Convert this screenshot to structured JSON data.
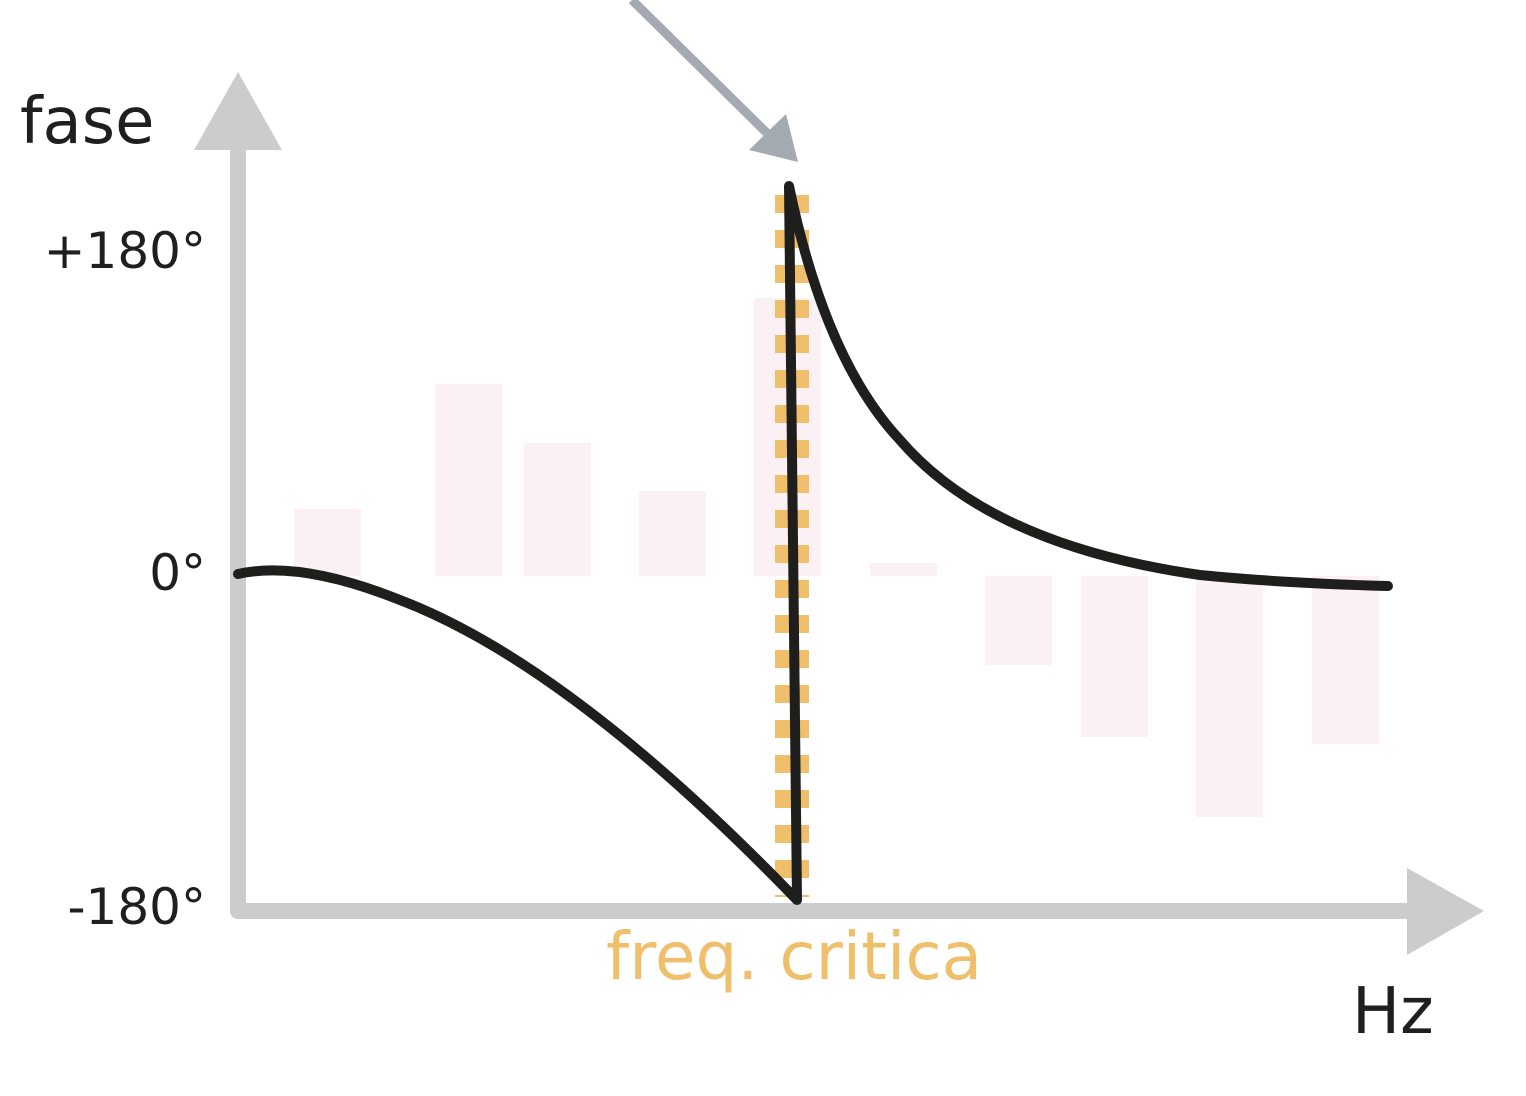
{
  "y_axis_title": "fase",
  "x_axis_title": "Hz",
  "y_ticks": {
    "top": "+180°",
    "middle": "0°",
    "bottom": "-180°"
  },
  "critical_frequency_label": "freq. critica",
  "colors": {
    "axis": "#cccccc",
    "curve": "#1e1e1c",
    "critical_line": "#f0bf6c",
    "pointer_arrow": "#a4aab2",
    "background_bars": "#fbf0f3"
  }
}
